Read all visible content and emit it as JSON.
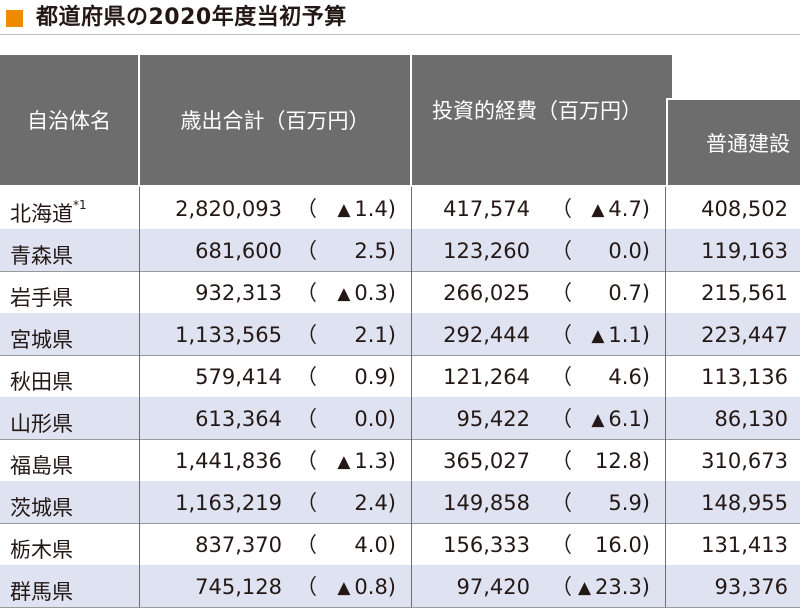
{
  "title": "都道府県の2020年度当初予算",
  "headers": {
    "name": "自治体名",
    "expenditure": "歳出合計（百万円）",
    "investment": "投資的経費（百万円）",
    "construction": "普通建設"
  },
  "rows": [
    {
      "name": "北海道",
      "note": "*1",
      "exp": "2,820,093",
      "exp_tri": "▲",
      "exp_chg": "1.4)",
      "inv": "417,574",
      "inv_tri": "▲",
      "inv_chg": "4.7)",
      "con": "408,502"
    },
    {
      "name": "青森県",
      "note": "",
      "exp": "681,600",
      "exp_tri": "",
      "exp_chg": "2.5)",
      "inv": "123,260",
      "inv_tri": "",
      "inv_chg": "0.0)",
      "con": "119,163"
    },
    {
      "name": "岩手県",
      "note": "",
      "exp": "932,313",
      "exp_tri": "▲",
      "exp_chg": "0.3)",
      "inv": "266,025",
      "inv_tri": "",
      "inv_chg": "0.7)",
      "con": "215,561"
    },
    {
      "name": "宮城県",
      "note": "",
      "exp": "1,133,565",
      "exp_tri": "",
      "exp_chg": "2.1)",
      "inv": "292,444",
      "inv_tri": "▲",
      "inv_chg": "1.1)",
      "con": "223,447"
    },
    {
      "name": "秋田県",
      "note": "",
      "exp": "579,414",
      "exp_tri": "",
      "exp_chg": "0.9)",
      "inv": "121,264",
      "inv_tri": "",
      "inv_chg": "4.6)",
      "con": "113,136"
    },
    {
      "name": "山形県",
      "note": "",
      "exp": "613,364",
      "exp_tri": "",
      "exp_chg": "0.0)",
      "inv": "95,422",
      "inv_tri": "▲",
      "inv_chg": "6.1)",
      "con": "86,130"
    },
    {
      "name": "福島県",
      "note": "",
      "exp": "1,441,836",
      "exp_tri": "▲",
      "exp_chg": "1.3)",
      "inv": "365,027",
      "inv_tri": "",
      "inv_chg": "12.8)",
      "con": "310,673"
    },
    {
      "name": "茨城県",
      "note": "",
      "exp": "1,163,219",
      "exp_tri": "",
      "exp_chg": "2.4)",
      "inv": "149,858",
      "inv_tri": "",
      "inv_chg": "5.9)",
      "con": "148,955"
    },
    {
      "name": "栃木県",
      "note": "",
      "exp": "837,370",
      "exp_tri": "",
      "exp_chg": "4.0)",
      "inv": "156,333",
      "inv_tri": "",
      "inv_chg": "16.0)",
      "con": "131,413"
    },
    {
      "name": "群馬県",
      "note": "",
      "exp": "745,128",
      "exp_tri": "▲",
      "exp_chg": "0.8)",
      "inv": "97,420",
      "inv_tri": "▲",
      "inv_chg": "23.3)",
      "con": "93,376"
    }
  ],
  "paren_open": "（",
  "colors": {
    "accent": "#f08a00",
    "header_bg": "#6d6d6d",
    "stripe": "#dfe2f0"
  }
}
